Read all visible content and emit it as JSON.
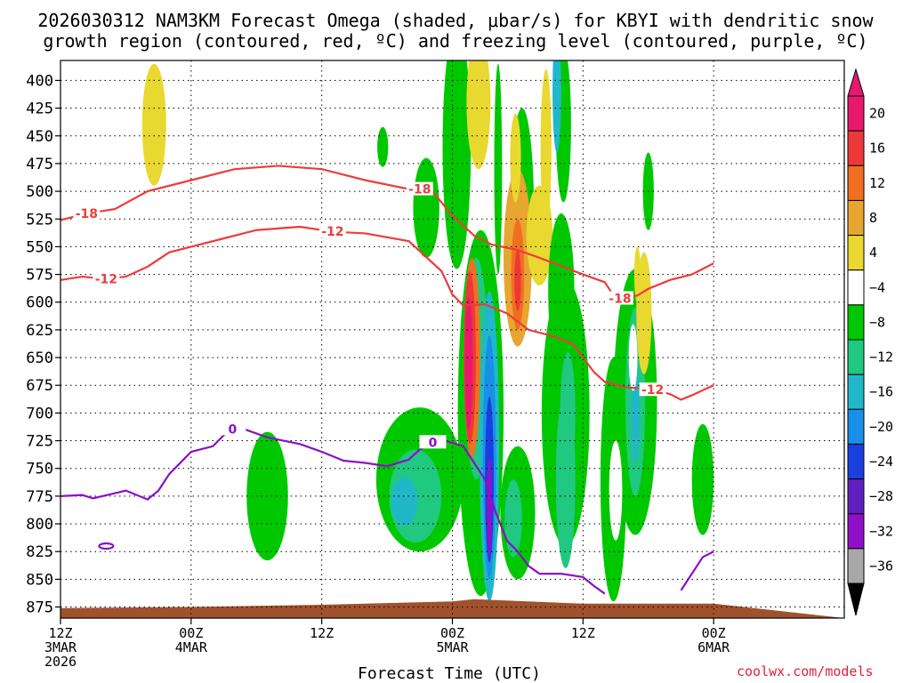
{
  "chart_data": {
    "type": "heatmap",
    "title_line1": "2026030312 NAM3KM Forecast Omega (shaded, μbar/s) for KBYI with dendritic snow",
    "title_line2": "growth region (contoured, red, ºC) and freezing level (contoured, purple, ºC)",
    "xlabel": "Forecast Time (UTC)",
    "credit": "coolwx.com/models",
    "y_axis": {
      "scale": "pressure",
      "inverted": true,
      "range": [
        382,
        885
      ],
      "ticks": [
        400,
        425,
        450,
        475,
        500,
        525,
        550,
        575,
        600,
        625,
        650,
        675,
        700,
        725,
        750,
        775,
        800,
        825,
        850,
        875
      ]
    },
    "x_axis": {
      "range_hours": [
        0,
        36
      ],
      "ticks": [
        {
          "hour": 0,
          "lines": [
            "12Z",
            "3MAR",
            "2026"
          ]
        },
        {
          "hour": 6,
          "lines": [
            "00Z",
            "4MAR"
          ]
        },
        {
          "hour": 12,
          "lines": [
            "12Z"
          ]
        },
        {
          "hour": 18,
          "lines": [
            "00Z",
            "5MAR"
          ]
        },
        {
          "hour": 24,
          "lines": [
            "12Z"
          ]
        },
        {
          "hour": 30,
          "lines": [
            "00Z",
            "6MAR"
          ]
        }
      ]
    },
    "grid": true,
    "colorbar": {
      "labels": [
        "20",
        "16",
        "12",
        "8",
        "4",
        "−4",
        "−8",
        "−12",
        "−16",
        "−20",
        "−24",
        "−28",
        "−32",
        "−36"
      ],
      "colors": [
        "#e8186e",
        "#ee3838",
        "#f07020",
        "#e6a630",
        "#e8d830",
        "#ffffff",
        "#00c800",
        "#20c880",
        "#20b8c8",
        "#1890e8",
        "#1840e0",
        "#6020c0",
        "#9010c8",
        "#a8a8a8"
      ]
    },
    "contours": {
      "dgz_minus18": {
        "label": "-18",
        "color": "#ee3b3b",
        "points": [
          [
            0,
            526
          ],
          [
            1.2,
            520
          ],
          [
            2.5,
            516
          ],
          [
            4,
            500
          ],
          [
            6,
            490
          ],
          [
            8,
            480
          ],
          [
            10,
            477
          ],
          [
            12,
            480
          ],
          [
            14,
            490
          ],
          [
            16,
            498
          ],
          [
            17,
            498
          ],
          [
            17.5,
            510
          ],
          [
            18,
            522
          ],
          [
            19,
            540
          ],
          [
            19.8,
            548
          ],
          [
            21,
            553
          ],
          [
            22,
            560
          ],
          [
            24,
            575
          ],
          [
            25,
            582
          ],
          [
            25.5,
            597
          ],
          [
            26,
            596
          ],
          [
            26.5,
            594
          ],
          [
            27,
            588
          ],
          [
            28,
            580
          ],
          [
            29,
            575
          ],
          [
            30,
            565
          ]
        ]
      },
      "dgz_minus12": {
        "label": "-12",
        "color": "#ee3b3b",
        "points": [
          [
            0,
            580
          ],
          [
            1,
            577
          ],
          [
            2,
            579
          ],
          [
            3,
            577
          ],
          [
            4,
            568
          ],
          [
            5,
            555
          ],
          [
            6,
            550
          ],
          [
            8,
            540
          ],
          [
            9,
            535
          ],
          [
            11,
            532
          ],
          [
            12,
            535
          ],
          [
            13,
            537
          ],
          [
            14,
            538
          ],
          [
            16,
            545
          ],
          [
            17.5,
            572
          ],
          [
            18,
            593
          ],
          [
            18.5,
            603
          ],
          [
            19.5,
            602
          ],
          [
            20.5,
            610
          ],
          [
            21.5,
            625
          ],
          [
            22.5,
            630
          ],
          [
            23.5,
            637
          ],
          [
            24.5,
            663
          ],
          [
            25,
            672
          ],
          [
            26,
            677
          ],
          [
            27,
            678
          ],
          [
            28,
            683
          ],
          [
            28.5,
            688
          ],
          [
            29,
            684
          ],
          [
            30,
            675
          ]
        ]
      },
      "freezing_level": {
        "label": "0",
        "color": "#8a10c8",
        "points": [
          [
            0,
            775
          ],
          [
            1,
            774
          ],
          [
            1.5,
            777
          ],
          [
            3,
            770
          ],
          [
            4,
            778
          ],
          [
            4.5,
            770
          ],
          [
            5,
            755
          ],
          [
            6,
            735
          ],
          [
            7,
            730
          ],
          [
            7.5,
            720
          ],
          [
            8,
            713
          ],
          [
            8.5,
            715
          ],
          [
            9.5,
            722
          ],
          [
            11,
            728
          ],
          [
            12,
            735
          ],
          [
            13,
            743
          ],
          [
            14,
            745
          ],
          [
            15,
            748
          ],
          [
            16,
            742
          ],
          [
            16.5,
            733
          ],
          [
            17,
            727
          ],
          [
            17.5,
            724
          ],
          [
            18.5,
            730
          ],
          [
            19,
            745
          ],
          [
            19.5,
            760
          ],
          [
            20,
            790
          ],
          [
            20.5,
            815
          ],
          [
            21,
            825
          ],
          [
            21.5,
            838
          ],
          [
            22,
            845
          ],
          [
            23,
            845
          ],
          [
            24,
            848
          ],
          [
            24.5,
            856
          ],
          [
            25,
            863
          ]
        ]
      },
      "freezing_level_late": {
        "label": "",
        "color": "#8a10c8",
        "points": [
          [
            28.5,
            860
          ],
          [
            29,
            845
          ],
          [
            29.5,
            830
          ],
          [
            30,
            825
          ]
        ]
      }
    },
    "terrain": {
      "color": "#a0522d",
      "top_pressure": [
        [
          0,
          876
        ],
        [
          6,
          875
        ],
        [
          12,
          873
        ],
        [
          18,
          870
        ],
        [
          19,
          868
        ],
        [
          24,
          872
        ],
        [
          30,
          872
        ]
      ]
    }
  }
}
